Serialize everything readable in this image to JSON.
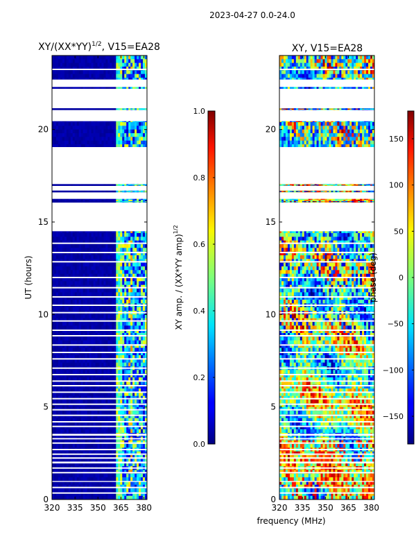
{
  "suptitle": "2023-04-27 0.0-24.0",
  "shared_xlabel": "frequency (MHz)",
  "chart_data": [
    {
      "type": "heatmap",
      "title_main": "XY/(XX*YY)",
      "title_exp": "1/2",
      "title_tail": ", V15=EA28",
      "ylabel": "UT (hours)",
      "xlim": [
        320,
        382
      ],
      "ylim": [
        0,
        24
      ],
      "xticks": [
        320,
        335,
        350,
        365,
        380
      ],
      "yticks": [
        0,
        5,
        10,
        15,
        20
      ],
      "colorbar": {
        "label_main": "XY amp. / (XX*YY amp)",
        "label_exp": "1/2",
        "range": [
          0.0,
          1.0
        ],
        "ticks": [
          "0.0",
          "0.2",
          "0.4",
          "0.6",
          "0.8",
          "1.0"
        ],
        "tick_values": [
          0.0,
          0.2,
          0.4,
          0.6,
          0.8,
          1.0
        ]
      }
    },
    {
      "type": "heatmap",
      "title_main": "XY, V15=EA28",
      "ylabel": "",
      "xlim": [
        320,
        382
      ],
      "ylim": [
        0,
        24
      ],
      "xticks": [
        320,
        335,
        350,
        365,
        380
      ],
      "yticks": [
        0,
        5,
        10,
        15,
        20
      ],
      "colorbar": {
        "label_main": "phase (deg)",
        "range": [
          -180,
          180
        ],
        "ticks": [
          "150",
          "100",
          "50",
          "0",
          "−50",
          "−100",
          "−150"
        ],
        "tick_values": [
          150,
          100,
          50,
          0,
          -50,
          -100,
          -150
        ]
      }
    }
  ],
  "data_gaps_hours": [
    [
      22.3,
      22.7
    ],
    [
      20.45,
      21.05
    ],
    [
      21.15,
      22.2
    ],
    [
      17.05,
      19.05
    ],
    [
      16.7,
      16.95
    ],
    [
      16.25,
      16.6
    ],
    [
      14.5,
      16.05
    ],
    [
      3.45,
      3.55
    ],
    [
      3.25,
      3.32
    ],
    [
      1.95,
      2.05
    ],
    [
      2.2,
      2.28
    ],
    [
      0.95,
      1.0
    ]
  ],
  "row_gaps_hours": [
    23.25,
    13.85,
    13.35,
    12.85,
    12.0,
    11.45,
    10.95,
    10.5,
    10.1,
    9.65,
    9.15,
    8.85,
    8.35,
    7.95,
    7.6,
    7.1,
    6.75,
    6.4,
    6.15,
    5.8,
    5.45,
    5.15,
    4.85,
    4.55,
    4.2,
    3.95,
    3.05,
    2.7,
    2.45,
    1.7,
    1.45,
    0.65,
    0.35
  ]
}
